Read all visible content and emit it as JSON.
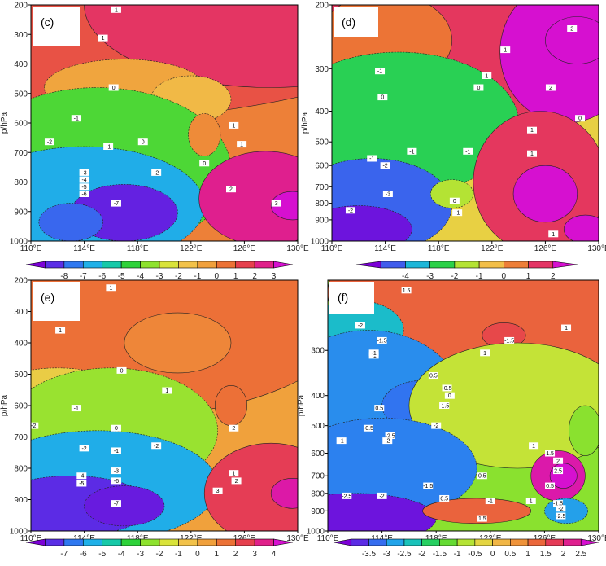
{
  "chart_data": [
    {
      "type": "heatmap",
      "panel_label": "(c)",
      "ylabel": "p/hPa",
      "y_ticks": [
        "200",
        "300",
        "400",
        "500",
        "600",
        "700",
        "800",
        "900",
        "1000"
      ],
      "ylim": [
        200,
        1000
      ],
      "y_scale": "linear",
      "x_ticks": [
        "110°E",
        "114°E",
        "118°E",
        "122°E",
        "126°E",
        "130°E"
      ],
      "xlim": [
        110,
        130
      ],
      "colorbar": [
        "-8",
        "-7",
        "-6",
        "-5",
        "-4",
        "-3",
        "-2",
        "-1",
        "0",
        "1",
        "2",
        "3"
      ],
      "contour_labels": [
        "1",
        "1",
        "0",
        "-1",
        "-2",
        "-1",
        "0",
        "1",
        "-2",
        "-3",
        "-4",
        "-5",
        "-6",
        "-7",
        "2",
        "3",
        "1",
        "0"
      ]
    },
    {
      "type": "heatmap",
      "panel_label": "(d)",
      "ylabel": "p/hPa",
      "y_ticks": [
        "200",
        "300",
        "400",
        "500",
        "600",
        "700",
        "800",
        "900",
        "1000"
      ],
      "ylim": [
        200,
        1000
      ],
      "y_scale": "log",
      "x_ticks": [
        "110°E",
        "114°E",
        "118°E",
        "122°E",
        "126°E",
        "130°E"
      ],
      "xlim": [
        110,
        130
      ],
      "colorbar": [
        "-4",
        "-3",
        "-2",
        "-1",
        "0",
        "1",
        "2"
      ],
      "contour_labels": [
        "2",
        "1",
        "1",
        "-1",
        "0",
        "0",
        "2",
        "1",
        "0",
        "-1",
        "-1",
        "-1",
        "-2",
        "-3",
        "-2",
        "-1",
        "0",
        "1",
        "1"
      ]
    },
    {
      "type": "heatmap",
      "panel_label": "(e)",
      "ylabel": "p/hPa",
      "y_ticks": [
        "200",
        "300",
        "400",
        "500",
        "600",
        "700",
        "800",
        "900",
        "1000"
      ],
      "ylim": [
        200,
        1000
      ],
      "y_scale": "linear",
      "x_ticks": [
        "110°E",
        "114°E",
        "118°E",
        "122°E",
        "126°E",
        "130°E"
      ],
      "xlim": [
        110,
        130
      ],
      "colorbar": [
        "-7",
        "-6",
        "-5",
        "-4",
        "-3",
        "-2",
        "-1",
        "0",
        "1",
        "2",
        "3",
        "4"
      ],
      "contour_labels": [
        "1",
        "1",
        "0",
        "1",
        "-1",
        "-2",
        "0",
        "-1",
        "-2",
        "-2",
        "-3",
        "-4",
        "-5",
        "-6",
        "-7",
        "2",
        "1",
        "2",
        "3"
      ]
    },
    {
      "type": "heatmap",
      "panel_label": "(f)",
      "ylabel": "p/hPa",
      "y_ticks": [
        "300",
        "400",
        "500",
        "600",
        "700",
        "800",
        "900",
        "1000"
      ],
      "ylim": [
        200,
        1000
      ],
      "y_scale": "log",
      "x_ticks": [
        "110°E",
        "114°E",
        "118°E",
        "122°E",
        "126°E",
        "130°E"
      ],
      "xlim": [
        110,
        130
      ],
      "colorbar": [
        "-3.5",
        "-3",
        "-2.5",
        "-2",
        "-1.5",
        "-1",
        "-0.5",
        "0",
        "0.5",
        "1",
        "1.5",
        "2",
        "2.5"
      ],
      "contour_labels": [
        "1.5",
        "-2",
        "-1.5",
        "-1",
        "-1",
        "1",
        "-1.5",
        "1",
        "0.5",
        "0",
        "-0.5",
        "-1",
        "-1.5",
        "-2",
        "0.5",
        "-0.5",
        "-1",
        "-2.5",
        "-2",
        "-2.5",
        "-1.5",
        "1",
        "1.5",
        "2",
        "2.5",
        "0.5",
        "1",
        "-1",
        "-2",
        "0.5",
        "1.5",
        "0.5",
        "-1.5",
        "-2",
        "-2.5"
      ]
    }
  ]
}
